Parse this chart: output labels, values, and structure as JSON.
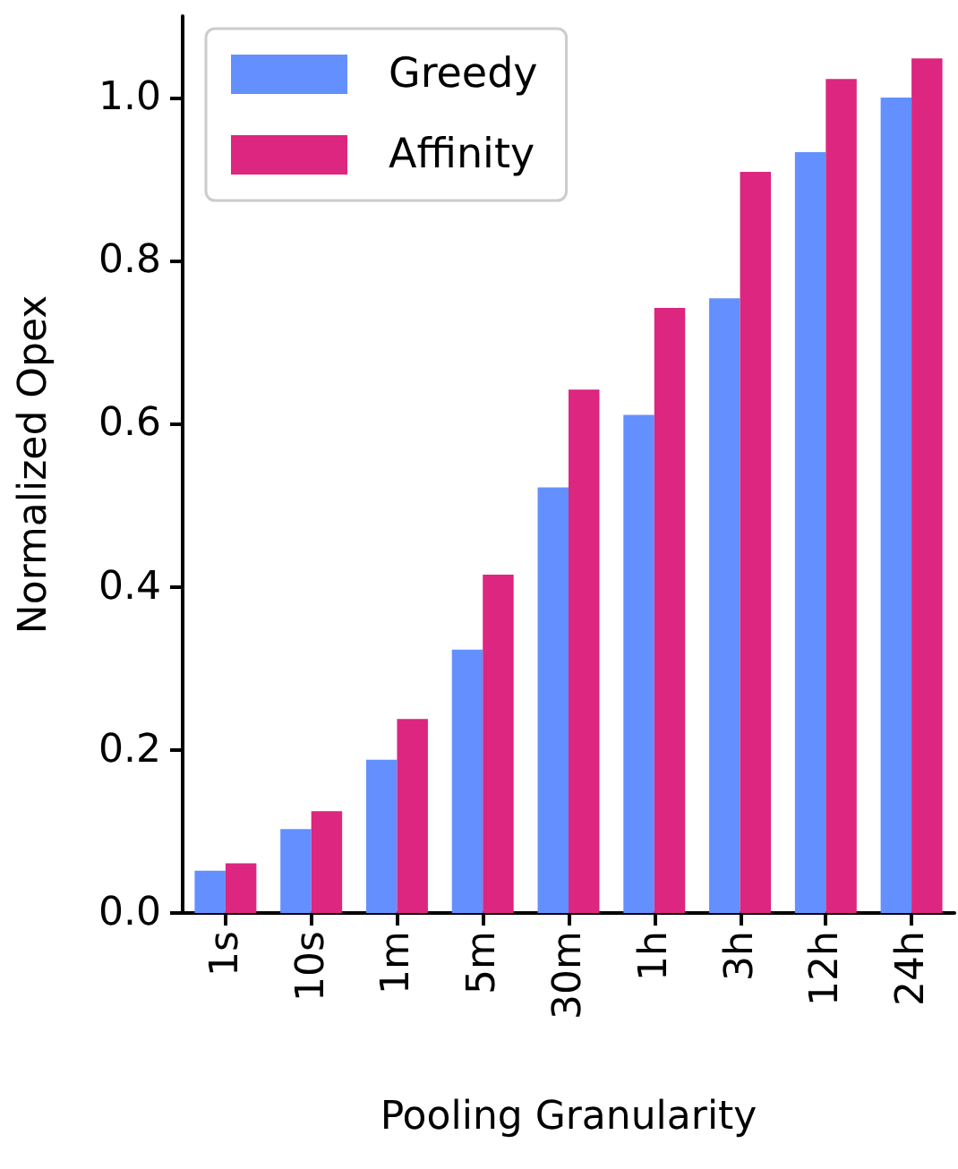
{
  "chart_data": {
    "type": "bar",
    "xlabel": "Pooling Granularity",
    "ylabel": "Normalized Opex",
    "categories": [
      "1s",
      "10s",
      "1m",
      "5m",
      "30m",
      "1h",
      "3h",
      "12h",
      "24h"
    ],
    "series": [
      {
        "name": "Greedy",
        "color": "#648fff",
        "values": [
          0.052,
          0.103,
          0.188,
          0.323,
          0.522,
          0.611,
          0.754,
          0.933,
          1.0
        ]
      },
      {
        "name": "Affinity",
        "color": "#dc267f",
        "values": [
          0.061,
          0.125,
          0.238,
          0.415,
          0.642,
          0.742,
          0.909,
          1.023,
          1.048
        ]
      }
    ],
    "ylim": [
      0,
      1.1
    ],
    "yticks": [
      {
        "value": 0,
        "label": "0.0"
      },
      0.2,
      0.4,
      0.6,
      0.8,
      {
        "value": 1,
        "label": "1.0"
      }
    ],
    "grid": false,
    "legend": "top left"
  }
}
